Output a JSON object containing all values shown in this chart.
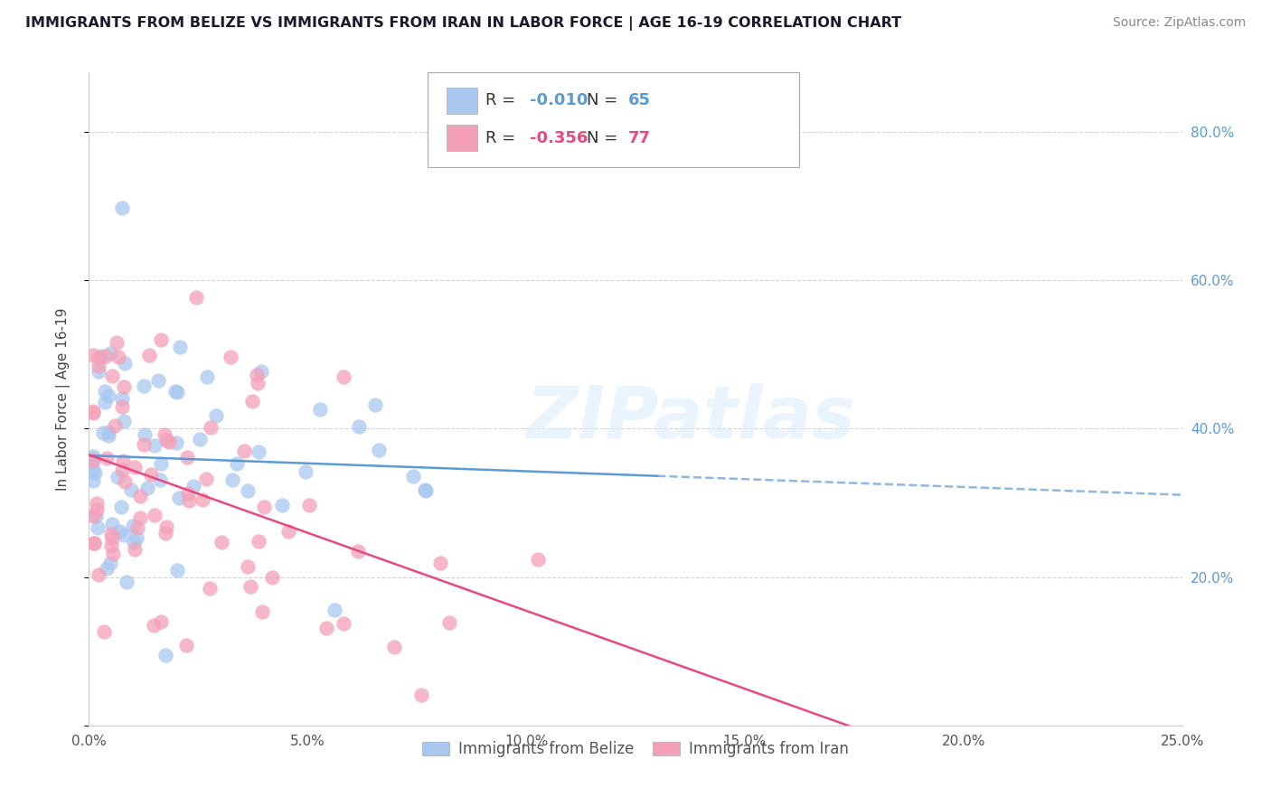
{
  "title": "IMMIGRANTS FROM BELIZE VS IMMIGRANTS FROM IRAN IN LABOR FORCE | AGE 16-19 CORRELATION CHART",
  "source": "Source: ZipAtlas.com",
  "ylabel": "In Labor Force | Age 16-19",
  "xticklabels": [
    "0.0%",
    "5.0%",
    "10.0%",
    "15.0%",
    "20.0%",
    "25.0%"
  ],
  "xticks": [
    0.0,
    0.05,
    0.1,
    0.15,
    0.2,
    0.25
  ],
  "yticklabels_right": [
    "20.0%",
    "40.0%",
    "60.0%",
    "80.0%"
  ],
  "yticks_right": [
    0.2,
    0.4,
    0.6,
    0.8
  ],
  "xlim": [
    0.0,
    0.25
  ],
  "ylim": [
    0.0,
    0.88
  ],
  "belize_color": "#a8c8f0",
  "iran_color": "#f4a0b8",
  "belize_line_color": "#5b9bd5",
  "iran_line_color": "#e84a7f",
  "belize_R": -0.01,
  "belize_N": 65,
  "iran_R": -0.356,
  "iran_N": 77,
  "watermark": "ZIPatlas",
  "background_color": "#ffffff",
  "grid_color": "#c8c8c8"
}
